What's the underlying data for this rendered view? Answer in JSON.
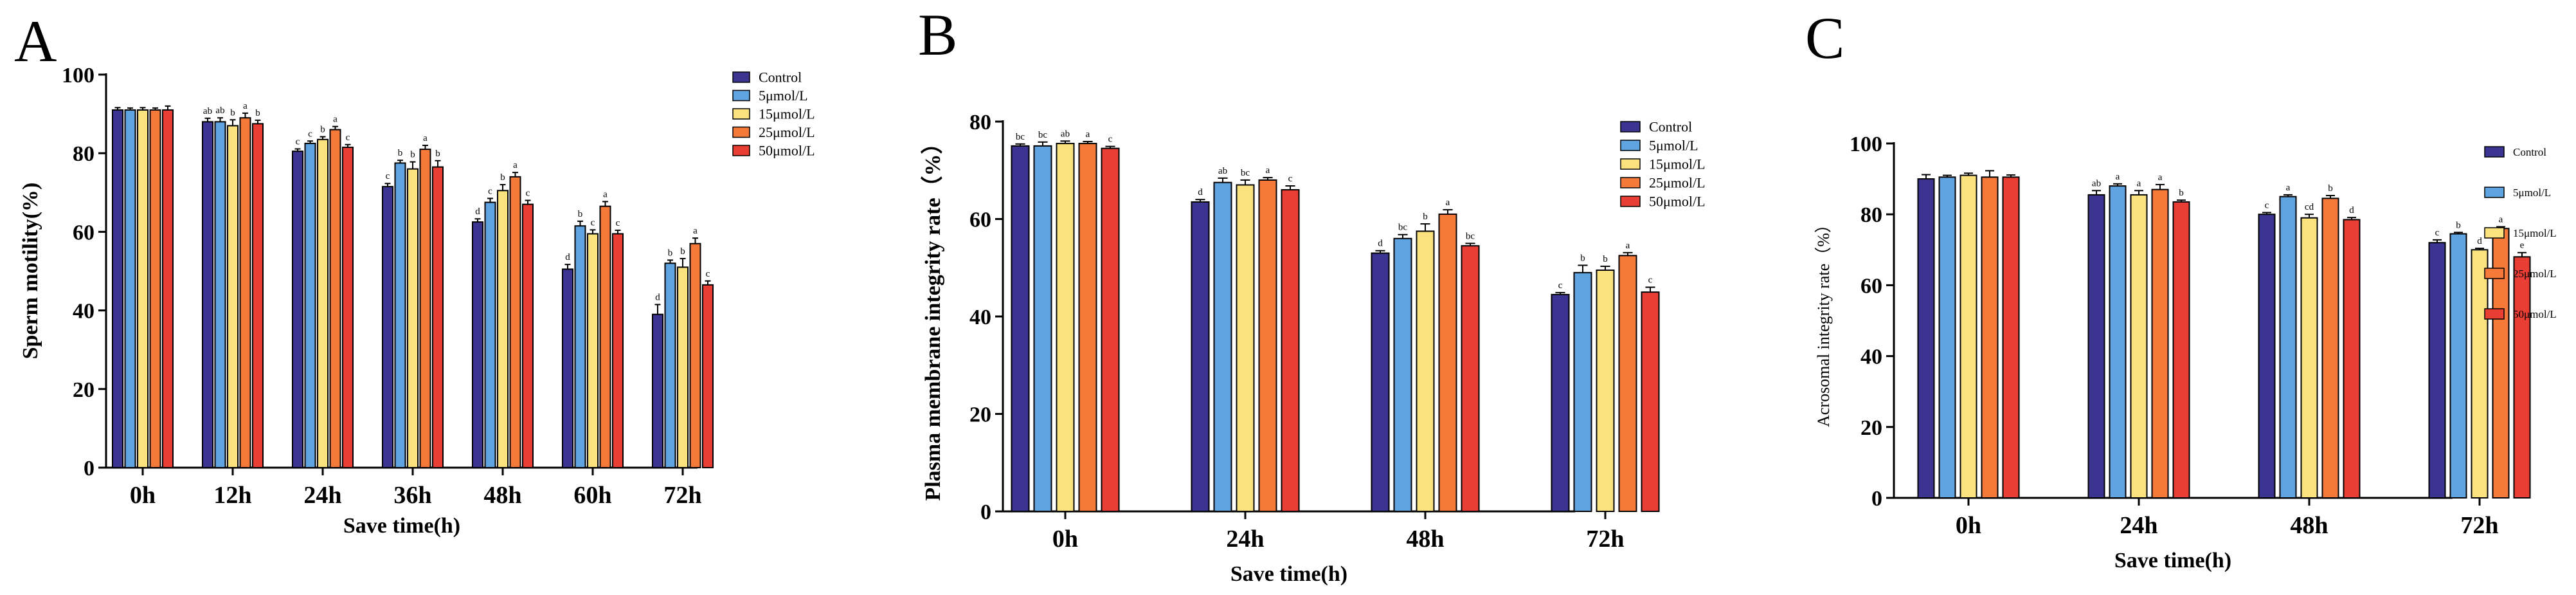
{
  "figure": {
    "background": "#ffffff"
  },
  "chart_data": [
    {
      "panel": "A",
      "type": "bar",
      "xlabel": "Save time(h)",
      "ylabel": "Sperm motility(%)",
      "ylim": [
        0,
        100
      ],
      "yticks": [
        0,
        20,
        40,
        60,
        80,
        100
      ],
      "categories": [
        "0h",
        "12h",
        "24h",
        "36h",
        "48h",
        "60h",
        "72h"
      ],
      "legend_position": "top-right",
      "series": [
        {
          "name": "Control",
          "color": "#3b3591",
          "values": [
            91,
            88,
            80.5,
            71.5,
            62.5,
            50.5,
            39
          ],
          "errors": [
            0.6,
            0.9,
            0.6,
            0.8,
            0.8,
            1.2,
            2.5
          ],
          "letters": [
            "",
            "ab",
            "c",
            "c",
            "d",
            "d",
            "d"
          ]
        },
        {
          "name": "5μmol/L",
          "color": "#5fa3e0",
          "values": [
            91,
            88,
            82.5,
            77.5,
            67.5,
            61.5,
            52
          ],
          "errors": [
            0.5,
            1.0,
            0.6,
            0.7,
            1.0,
            1.2,
            0.8
          ],
          "letters": [
            "",
            "ab",
            "c",
            "b",
            "c",
            "b",
            "b"
          ]
        },
        {
          "name": "15μmol/L",
          "color": "#fae27e",
          "values": [
            91,
            87,
            83.5,
            76,
            70.5,
            59.5,
            51
          ],
          "errors": [
            0.6,
            1.5,
            0.7,
            1.8,
            1.5,
            1.0,
            2.2
          ],
          "letters": [
            "",
            "b",
            "b",
            "b",
            "b",
            "c",
            "b"
          ]
        },
        {
          "name": "25μmol/L",
          "color": "#f57a3a",
          "values": [
            91,
            89,
            86,
            81,
            74,
            66.5,
            57
          ],
          "errors": [
            0.5,
            1.2,
            0.8,
            1.0,
            1.1,
            1.2,
            1.4
          ],
          "letters": [
            "",
            "a",
            "a",
            "a",
            "a",
            "a",
            "a"
          ]
        },
        {
          "name": "50μmol/L",
          "color": "#e83e33",
          "values": [
            91,
            87.5,
            81.5,
            76.5,
            67,
            59.5,
            46.5
          ],
          "errors": [
            1.0,
            0.9,
            0.7,
            1.6,
            1.0,
            0.9,
            1.0
          ],
          "letters": [
            "",
            "b",
            "c",
            "b",
            "c",
            "c",
            "c"
          ]
        }
      ]
    },
    {
      "panel": "B",
      "type": "bar",
      "xlabel": "Save time(h)",
      "ylabel": "Plasma membrane integrity rate（%）",
      "ylim": [
        0,
        80
      ],
      "yticks": [
        0,
        20,
        40,
        60,
        80
      ],
      "categories": [
        "0h",
        "24h",
        "48h",
        "72h"
      ],
      "legend_position": "top-right",
      "series": [
        {
          "name": "Control",
          "color": "#3b3591",
          "values": [
            75,
            63.5,
            53,
            44.5
          ],
          "errors": [
            0.4,
            0.5,
            0.5,
            0.4
          ],
          "letters": [
            "bc",
            "d",
            "d",
            "c"
          ]
        },
        {
          "name": "5μmol/L",
          "color": "#5fa3e0",
          "values": [
            75,
            67.5,
            56,
            49
          ],
          "errors": [
            0.8,
            0.9,
            0.8,
            1.5
          ],
          "letters": [
            "bc",
            "ab",
            "bc",
            "b"
          ]
        },
        {
          "name": "15μmol/L",
          "color": "#fae27e",
          "values": [
            75.5,
            67,
            57.5,
            49.5
          ],
          "errors": [
            0.5,
            1.0,
            1.5,
            0.8
          ],
          "letters": [
            "ab",
            "bc",
            "b",
            "b"
          ]
        },
        {
          "name": "25μmol/L",
          "color": "#f57a3a",
          "values": [
            75.5,
            68,
            61,
            52.5
          ],
          "errors": [
            0.4,
            0.5,
            0.9,
            0.6
          ],
          "letters": [
            "a",
            "a",
            "a",
            "a"
          ]
        },
        {
          "name": "50μmol/L",
          "color": "#e83e33",
          "values": [
            74.5,
            66,
            54.5,
            45
          ],
          "errors": [
            0.4,
            0.8,
            0.5,
            1.0
          ],
          "letters": [
            "c",
            "c",
            "bc",
            "c"
          ]
        }
      ]
    },
    {
      "panel": "C",
      "type": "bar",
      "xlabel": "Save time(h)",
      "ylabel": "Acrosomal integrity rate（%）",
      "ylim": [
        0,
        100
      ],
      "yticks": [
        0,
        20,
        40,
        60,
        80,
        100
      ],
      "categories": [
        "0h",
        "24h",
        "48h",
        "72h"
      ],
      "legend_position": "top-right",
      "series": [
        {
          "name": "Control",
          "color": "#3b3591",
          "values": [
            90,
            85.5,
            80,
            72
          ],
          "errors": [
            1.2,
            1.2,
            0.5,
            0.8
          ],
          "letters": [
            "",
            "ab",
            "c",
            "c"
          ]
        },
        {
          "name": "5μmol/L",
          "color": "#5fa3e0",
          "values": [
            90.5,
            88,
            85,
            74.5
          ],
          "errors": [
            0.5,
            0.6,
            0.5,
            0.4
          ],
          "letters": [
            "",
            "a",
            "a",
            "b"
          ]
        },
        {
          "name": "15μmol/L",
          "color": "#fae27e",
          "values": [
            91,
            85.5,
            79,
            70
          ],
          "errors": [
            0.6,
            1.2,
            1.0,
            0.4
          ],
          "letters": [
            "",
            "a",
            "cd",
            "d"
          ]
        },
        {
          "name": "25μmol/L",
          "color": "#f57a3a",
          "values": [
            90.5,
            87,
            84.5,
            76
          ],
          "errors": [
            1.8,
            1.4,
            0.8,
            0.5
          ],
          "letters": [
            "",
            "a",
            "b",
            "a"
          ]
        },
        {
          "name": "50μmol/L",
          "color": "#e83e33",
          "values": [
            90.5,
            83.5,
            78.5,
            68
          ],
          "errors": [
            0.6,
            0.5,
            0.6,
            1.2
          ],
          "letters": [
            "",
            "b",
            "d",
            "e"
          ]
        }
      ]
    }
  ]
}
